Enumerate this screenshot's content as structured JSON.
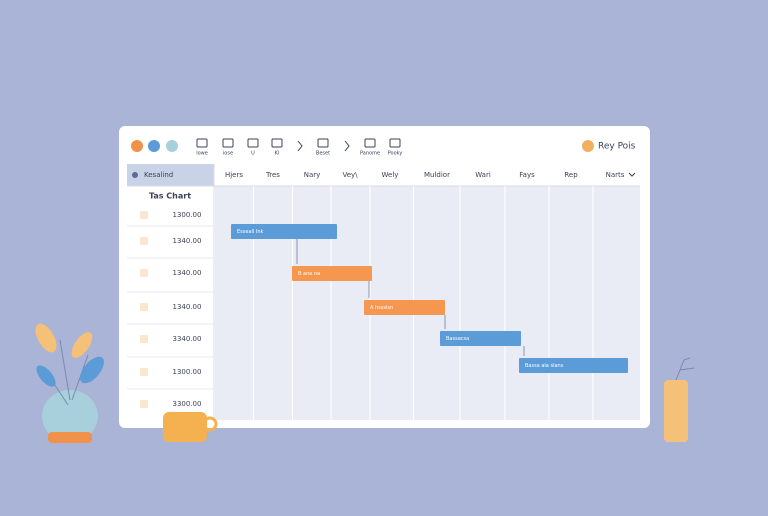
{
  "toolbar": {
    "items": [
      "lowe",
      "iose",
      "U",
      "KI",
      "Beset",
      "Panome",
      "Pooky"
    ],
    "user": "Rey Pois"
  },
  "sidebar": {
    "header": "Kesalind",
    "title": "Tas Chart",
    "rows": [
      "1300.00",
      "1340.00",
      "1340.00",
      "1340.00",
      "3340.00",
      "1300.00",
      "3300.00"
    ]
  },
  "timeline": {
    "columns": [
      "Hjers",
      "Tres",
      "Nary",
      "Vey\\",
      "Wely",
      "Muldior",
      "Wari",
      "Fays",
      "Rep",
      "Narts"
    ],
    "tasks": [
      "Esseall Ink",
      "B ane na",
      "A hssslsn",
      "Bassacsa",
      "Bassa ala slans"
    ]
  }
}
